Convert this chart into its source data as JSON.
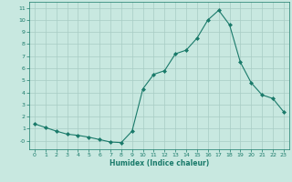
{
  "x": [
    0,
    1,
    2,
    3,
    4,
    5,
    6,
    7,
    8,
    9,
    10,
    11,
    12,
    13,
    14,
    15,
    16,
    17,
    18,
    19,
    20,
    21,
    22,
    23
  ],
  "y": [
    1.4,
    1.1,
    0.8,
    0.55,
    0.45,
    0.3,
    0.1,
    -0.1,
    -0.15,
    0.8,
    4.3,
    5.5,
    5.8,
    7.2,
    7.5,
    8.5,
    10.0,
    10.8,
    9.6,
    6.5,
    4.8,
    3.8,
    3.5,
    2.4
  ],
  "xlabel": "Humidex (Indice chaleur)",
  "xlim": [
    -0.5,
    23.5
  ],
  "ylim": [
    -0.7,
    11.5
  ],
  "yticks": [
    0,
    1,
    2,
    3,
    4,
    5,
    6,
    7,
    8,
    9,
    10,
    11
  ],
  "xticks": [
    0,
    1,
    2,
    3,
    4,
    5,
    6,
    7,
    8,
    9,
    10,
    11,
    12,
    13,
    14,
    15,
    16,
    17,
    18,
    19,
    20,
    21,
    22,
    23
  ],
  "line_color": "#1a7a6a",
  "marker_color": "#1a7a6a",
  "bg_color": "#c8e8e0",
  "grid_color": "#a8ccc4",
  "axis_color": "#1a7a6a",
  "tick_color": "#1a7a6a",
  "label_color": "#1a7a6a"
}
